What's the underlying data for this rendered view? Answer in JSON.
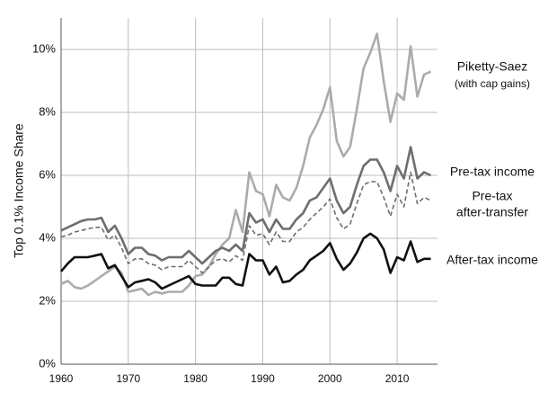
{
  "chart_data": {
    "type": "line",
    "y_label": "Top 0.1% Income Share",
    "x": [
      1960,
      1961,
      1962,
      1963,
      1964,
      1965,
      1966,
      1967,
      1968,
      1969,
      1970,
      1971,
      1972,
      1973,
      1974,
      1975,
      1976,
      1977,
      1978,
      1979,
      1980,
      1981,
      1982,
      1983,
      1984,
      1985,
      1986,
      1987,
      1988,
      1989,
      1990,
      1991,
      1992,
      1993,
      1994,
      1995,
      1996,
      1997,
      1998,
      1999,
      2000,
      2001,
      2002,
      2003,
      2004,
      2005,
      2006,
      2007,
      2008,
      2009,
      2010,
      2011,
      2012,
      2013,
      2014,
      2015
    ],
    "xlim": [
      1960,
      2016
    ],
    "xticks": [
      1960,
      1970,
      1980,
      1990,
      2000,
      2010
    ],
    "ylim": [
      0,
      11
    ],
    "yticks": [
      {
        "value": 0,
        "label": "0%"
      },
      {
        "value": 2,
        "label": "2%"
      },
      {
        "value": 4,
        "label": "4%"
      },
      {
        "value": 6,
        "label": "6%"
      },
      {
        "value": 8,
        "label": "8%"
      },
      {
        "value": 10,
        "label": "10%"
      }
    ],
    "grid": true,
    "series": [
      {
        "name": [
          "Piketty-Saez",
          "(with cap gains)"
        ],
        "color": "#ababab",
        "dashed": false,
        "values": [
          2.55,
          2.65,
          2.45,
          2.4,
          2.5,
          2.65,
          2.8,
          2.95,
          3.1,
          2.9,
          2.3,
          2.35,
          2.4,
          2.2,
          2.3,
          2.25,
          2.3,
          2.3,
          2.3,
          2.5,
          2.8,
          2.85,
          3.1,
          3.5,
          3.8,
          4.0,
          4.9,
          4.2,
          6.1,
          5.5,
          5.4,
          4.7,
          5.7,
          5.3,
          5.2,
          5.6,
          6.3,
          7.2,
          7.6,
          8.1,
          8.8,
          7.1,
          6.6,
          6.9,
          8.1,
          9.4,
          9.9,
          10.5,
          9.0,
          7.7,
          8.6,
          8.4,
          10.1,
          8.5,
          9.2,
          9.3
        ]
      },
      {
        "name": "Pre-tax income",
        "color": "#6e6e6e",
        "dashed": false,
        "values": [
          4.25,
          4.35,
          4.45,
          4.55,
          4.6,
          4.6,
          4.65,
          4.2,
          4.4,
          4.0,
          3.5,
          3.7,
          3.7,
          3.5,
          3.45,
          3.3,
          3.4,
          3.4,
          3.4,
          3.6,
          3.4,
          3.2,
          3.4,
          3.6,
          3.7,
          3.6,
          3.8,
          3.6,
          4.8,
          4.5,
          4.6,
          4.2,
          4.6,
          4.3,
          4.3,
          4.6,
          4.8,
          5.2,
          5.3,
          5.6,
          5.9,
          5.2,
          4.8,
          5.0,
          5.7,
          6.3,
          6.5,
          6.5,
          6.1,
          5.5,
          6.3,
          5.9,
          6.9,
          5.9,
          6.1,
          6.0
        ]
      },
      {
        "name": [
          "Pre-tax",
          "after-transfer"
        ],
        "color": "#6e6e6e",
        "dashed": true,
        "values": [
          4.05,
          4.1,
          4.2,
          4.25,
          4.3,
          4.35,
          4.35,
          3.95,
          4.1,
          3.7,
          3.2,
          3.35,
          3.35,
          3.2,
          3.15,
          3.0,
          3.1,
          3.1,
          3.1,
          3.3,
          3.1,
          2.9,
          3.1,
          3.3,
          3.35,
          3.25,
          3.45,
          3.3,
          4.4,
          4.1,
          4.15,
          3.8,
          4.2,
          3.9,
          3.9,
          4.2,
          4.35,
          4.6,
          4.8,
          5.0,
          5.25,
          4.65,
          4.3,
          4.45,
          5.1,
          5.7,
          5.8,
          5.8,
          5.3,
          4.7,
          5.4,
          5.0,
          6.1,
          5.1,
          5.3,
          5.2
        ]
      },
      {
        "name": "After-tax income",
        "color": "#111111",
        "dashed": false,
        "values": [
          2.95,
          3.2,
          3.4,
          3.4,
          3.4,
          3.45,
          3.5,
          3.05,
          3.15,
          2.8,
          2.45,
          2.6,
          2.65,
          2.7,
          2.6,
          2.4,
          2.5,
          2.6,
          2.7,
          2.8,
          2.55,
          2.5,
          2.5,
          2.5,
          2.75,
          2.75,
          2.55,
          2.5,
          3.5,
          3.3,
          3.3,
          2.85,
          3.1,
          2.6,
          2.65,
          2.85,
          3.0,
          3.3,
          3.45,
          3.6,
          3.85,
          3.35,
          3.0,
          3.2,
          3.55,
          4.0,
          4.15,
          4.0,
          3.65,
          2.9,
          3.4,
          3.3,
          3.9,
          3.25,
          3.35,
          3.35
        ]
      }
    ]
  }
}
